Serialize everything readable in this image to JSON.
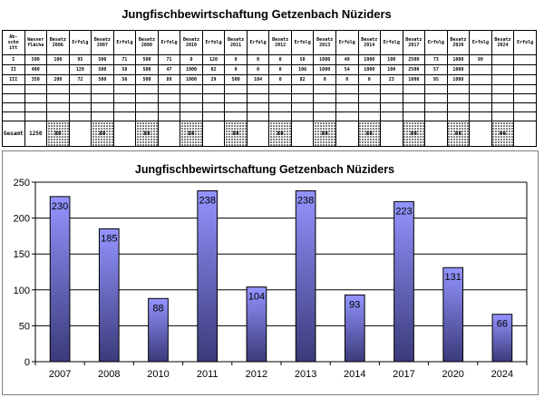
{
  "sheet_title": "Jungfischbewirtschaftung Getzenbach Nüziders",
  "table": {
    "header": [
      "Ab-\nschn\nitt",
      "Wasser\nfläche",
      "Besatz\n2006",
      "Erfolg\n",
      "Besatz\n2007",
      "Erfolg\n",
      "Besatz\n2008",
      "Erfolg\n",
      "Besatz\n2010",
      "Erfolg\n",
      "Besatz\n2011",
      "Erfolg\n",
      "Besatz\n2012",
      "Erfolg\n",
      "Besatz\n2013",
      "Erfolg\n",
      "Besatz\n2014",
      "Erfolg\n",
      "Besatz\n2017",
      "Erfolg\n",
      "Besatz\n2020",
      "Erfolg\n",
      "Besatz\n2024",
      "Erfolg\n"
    ],
    "rows": [
      [
        "I",
        "500",
        "100",
        "95",
        "500",
        "71",
        "500",
        "71",
        "0",
        "120",
        "0",
        "0",
        "0",
        "58",
        "1000",
        "49",
        "1000",
        "100",
        "2500",
        "73",
        "1000",
        "99",
        "",
        ""
      ],
      [
        "II",
        "400",
        "",
        "129",
        "500",
        "58",
        "500",
        "47",
        "1000",
        "82",
        "0",
        "0",
        "0",
        "106",
        "1000",
        "54",
        "1000",
        "100",
        "2500",
        "57",
        "1000",
        "",
        "",
        ""
      ],
      [
        "III",
        "350",
        "200",
        "72",
        "500",
        "56",
        "500",
        "89",
        "1000",
        "29",
        "500",
        "104",
        "0",
        "82",
        "0",
        "0",
        "0",
        "23",
        "1000",
        "95",
        "1000",
        "",
        "",
        ""
      ]
    ],
    "sum_label": "Gesamt",
    "sum_values": [
      "1250",
      "88",
      "",
      "88",
      "",
      "88",
      "",
      "88",
      "",
      "88",
      "",
      "88",
      "",
      "88",
      "",
      "88",
      "",
      "88",
      "",
      "88",
      "",
      "66",
      ""
    ]
  },
  "chart_data": {
    "type": "bar",
    "title": "Jungfischbewirtschaftung Getzenbach Nüziders",
    "categories": [
      "2007",
      "2008",
      "2010",
      "2011",
      "2012",
      "2013",
      "2014",
      "2017",
      "2020",
      "2024"
    ],
    "values": [
      230,
      185,
      88,
      238,
      104,
      238,
      93,
      223,
      131,
      66
    ],
    "ylim": [
      0,
      250
    ],
    "yticks": [
      0,
      50,
      100,
      150,
      200,
      250
    ],
    "xlabel": "",
    "ylabel": "",
    "grid": true,
    "bar_gradient": [
      "#9494ff",
      "#3a3a7a"
    ]
  }
}
